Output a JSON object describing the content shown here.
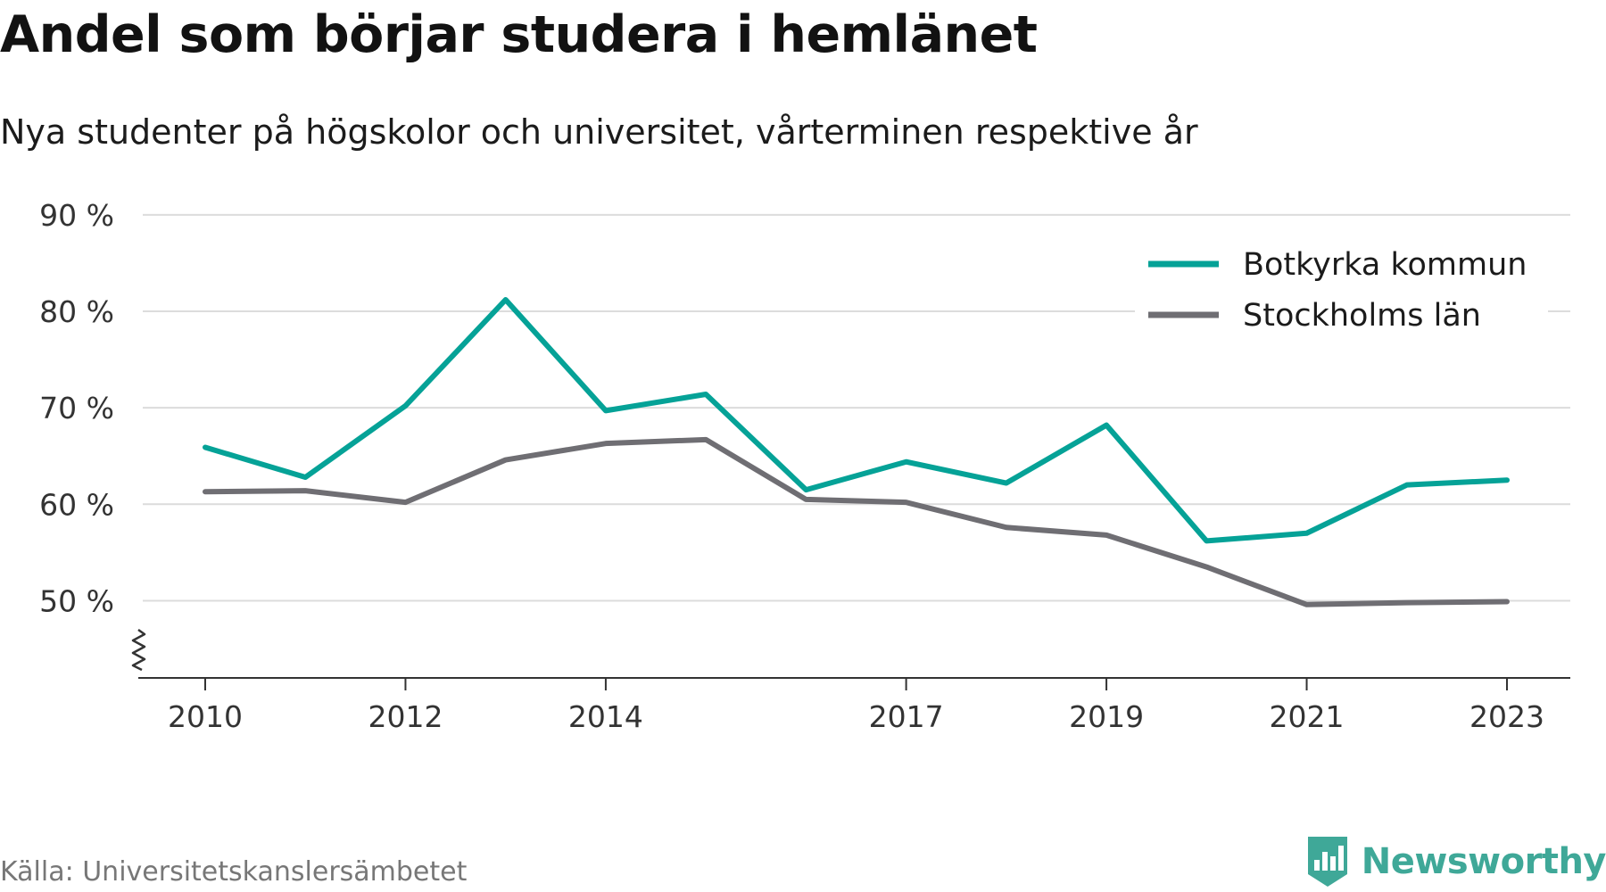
{
  "title": "Andel som börjar studera i hemlänet",
  "subtitle": "Nya studenter på högskolor och universitet, vårterminen respektive år",
  "source": "Källa: Universitetskanslersämbetet",
  "brand": {
    "name": "Newsworthy",
    "icon": "newsworthy-logo-icon",
    "color": "#3fa898"
  },
  "chart_data": {
    "type": "line",
    "title": "Andel som börjar studera i hemlänet",
    "subtitle": "Nya studenter på högskolor och universitet, vårterminen respektive år",
    "x": [
      2010,
      2011,
      2012,
      2013,
      2014,
      2015,
      2016,
      2017,
      2018,
      2019,
      2020,
      2021,
      2022,
      2023
    ],
    "x_tick_values": [
      2010,
      2012,
      2014,
      2017,
      2019,
      2021,
      2023
    ],
    "x_tick_labels": [
      "2010",
      "2012",
      "2014",
      "2017",
      "2019",
      "2021",
      "2023"
    ],
    "y_tick_values": [
      50,
      60,
      70,
      80,
      90
    ],
    "y_tick_labels": [
      "50 %",
      "60 %",
      "70 %",
      "80 %",
      "90 %"
    ],
    "ylim": [
      42,
      91
    ],
    "y_axis_break": true,
    "grid": "horizontal",
    "legend_position": "top-right",
    "series": [
      {
        "name": "Botkyrka kommun",
        "color": "#05a297",
        "values": [
          65.9,
          62.8,
          70.2,
          81.2,
          69.7,
          71.4,
          61.5,
          64.4,
          62.2,
          68.2,
          56.2,
          57.0,
          62.0,
          62.5
        ]
      },
      {
        "name": "Stockholms län",
        "color": "#6f6e73",
        "values": [
          61.3,
          61.4,
          60.2,
          64.6,
          66.3,
          66.7,
          60.5,
          60.2,
          57.6,
          56.8,
          53.5,
          49.6,
          49.8,
          49.9
        ]
      }
    ]
  }
}
